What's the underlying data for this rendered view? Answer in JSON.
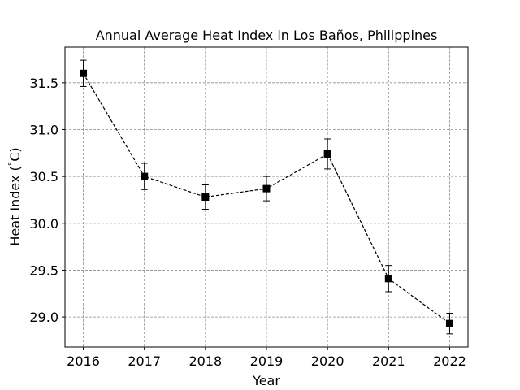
{
  "chart_data": {
    "type": "line",
    "title": "Annual Average Heat Index in Los Baños, Philippines",
    "xlabel": "Year",
    "ylabel": "Heat Index (°C)",
    "ylabel_parts": {
      "main": "Heat Index (",
      "degree": "°",
      "unit": "C)"
    },
    "x": [
      2016,
      2017,
      2018,
      2019,
      2020,
      2021,
      2022
    ],
    "x_tick_labels": [
      "2016",
      "2017",
      "2018",
      "2019",
      "2020",
      "2021",
      "2022"
    ],
    "y_ticks": [
      29.0,
      29.5,
      30.0,
      30.5,
      31.0,
      31.5
    ],
    "y_tick_labels": [
      "29.0",
      "29.5",
      "30.0",
      "30.5",
      "31.0",
      "31.5"
    ],
    "xlim": [
      2015.7,
      2022.3
    ],
    "ylim": [
      28.68,
      31.88
    ],
    "grid": true,
    "series": [
      {
        "values": [
          31.6,
          30.5,
          30.28,
          30.37,
          30.74,
          29.41,
          28.93
        ],
        "errors": [
          0.14,
          0.14,
          0.13,
          0.13,
          0.16,
          0.14,
          0.11
        ],
        "color": "#000000",
        "line_style": "dashed",
        "marker": "square"
      }
    ]
  }
}
